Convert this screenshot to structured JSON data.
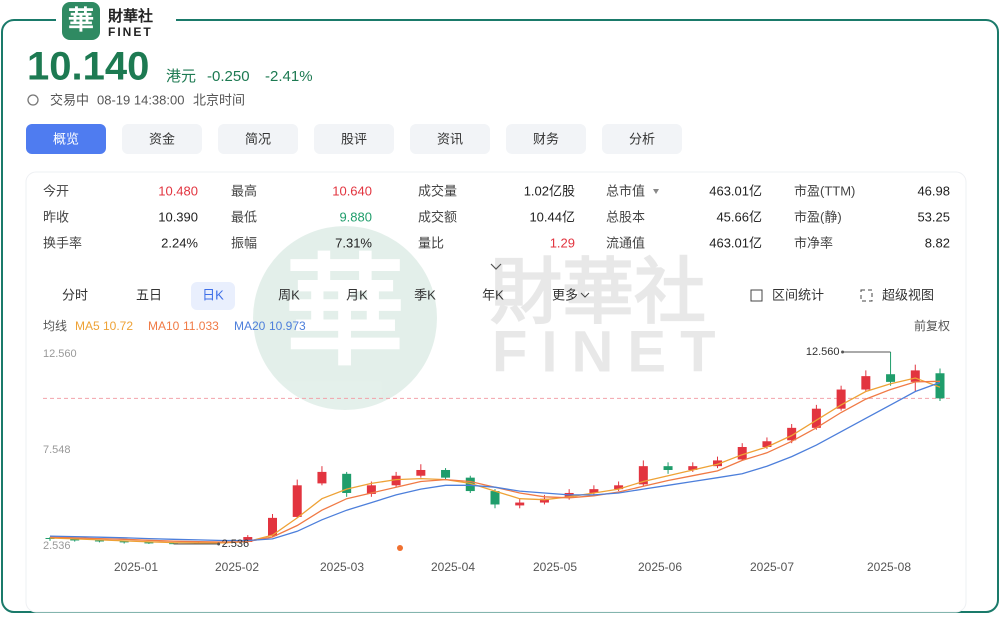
{
  "logo": {
    "glyph": "華",
    "name": "財華社",
    "latin": "FINET"
  },
  "quote": {
    "price": "10.140",
    "currency": "港元",
    "change": "-0.250",
    "change_pct": "-2.41%",
    "status": "交易中",
    "time": "08-19 14:38:00",
    "timezone": "北京时间"
  },
  "tabs": [
    {
      "label": "概览",
      "active": true
    },
    {
      "label": "资金"
    },
    {
      "label": "简况"
    },
    {
      "label": "股评"
    },
    {
      "label": "资讯"
    },
    {
      "label": "财务"
    },
    {
      "label": "分析"
    }
  ],
  "stats": [
    [
      {
        "label": "今开",
        "value": "10.480",
        "tone": "up"
      },
      {
        "label": "最高",
        "value": "10.640",
        "tone": "up"
      },
      {
        "label": "成交量",
        "value": "1.02亿股"
      },
      {
        "label": "总市值",
        "value": "463.01亿",
        "menu": true
      },
      {
        "label": "市盈(TTM)",
        "value": "46.98"
      }
    ],
    [
      {
        "label": "昨收",
        "value": "10.390"
      },
      {
        "label": "最低",
        "value": "9.880",
        "tone": "down"
      },
      {
        "label": "成交额",
        "value": "10.44亿"
      },
      {
        "label": "总股本",
        "value": "45.66亿"
      },
      {
        "label": "市盈(静)",
        "value": "53.25"
      }
    ],
    [
      {
        "label": "换手率",
        "value": "2.24%"
      },
      {
        "label": "振幅",
        "value": "7.31%"
      },
      {
        "label": "量比",
        "value": "1.29",
        "tone": "up"
      },
      {
        "label": "流通值",
        "value": "463.01亿"
      },
      {
        "label": "市净率",
        "value": "8.82"
      }
    ]
  ],
  "chart_tabs": [
    {
      "label": "分时"
    },
    {
      "label": "五日"
    },
    {
      "label": "日K",
      "active": true
    },
    {
      "label": "周K"
    },
    {
      "label": "月K"
    },
    {
      "label": "季K"
    },
    {
      "label": "年K"
    },
    {
      "label": "更多",
      "menu": true
    }
  ],
  "chart_tools": [
    "区间统计",
    "超级视图"
  ],
  "chart_data": {
    "type": "candlestick",
    "ma_title": "均线",
    "adjust": "前复权",
    "up_color": "#e2343f",
    "down_color": "#1f9d6b",
    "open": [
      2.85,
      2.8,
      2.72,
      2.68,
      2.62,
      2.58,
      2.56,
      2.6,
      2.64,
      2.95,
      3.95,
      5.7,
      6.2,
      5.15,
      5.6,
      6.1,
      6.4,
      6.0,
      5.3,
      4.55,
      4.7,
      4.95,
      5.2,
      5.4,
      5.65,
      6.6,
      6.4,
      6.6,
      6.95,
      7.6,
      7.95,
      8.6,
      9.6,
      10.6,
      11.4,
      11.0,
      11.45
    ],
    "high": [
      2.9,
      2.84,
      2.76,
      2.7,
      2.66,
      2.62,
      2.64,
      2.66,
      3.0,
      4.1,
      5.9,
      6.6,
      6.3,
      5.8,
      6.3,
      6.7,
      6.5,
      6.1,
      5.4,
      4.9,
      5.1,
      5.4,
      5.6,
      5.8,
      6.9,
      6.8,
      6.8,
      7.1,
      7.8,
      8.1,
      8.8,
      9.8,
      10.8,
      11.6,
      12.56,
      11.9,
      11.7
    ],
    "low": [
      2.7,
      2.66,
      2.62,
      2.56,
      2.54,
      2.536,
      2.55,
      2.58,
      2.62,
      2.9,
      3.9,
      5.6,
      5.0,
      5.0,
      5.5,
      6.0,
      5.9,
      5.2,
      4.4,
      4.4,
      4.6,
      4.85,
      5.1,
      5.3,
      5.55,
      6.2,
      6.3,
      6.5,
      6.9,
      7.5,
      7.8,
      8.5,
      9.5,
      10.5,
      10.8,
      10.5,
      10.0
    ],
    "close": [
      2.8,
      2.72,
      2.68,
      2.62,
      2.58,
      2.56,
      2.6,
      2.62,
      2.9,
      3.9,
      5.6,
      6.3,
      5.2,
      5.6,
      6.1,
      6.4,
      6.0,
      5.3,
      4.6,
      4.7,
      4.9,
      5.2,
      5.4,
      5.6,
      6.6,
      6.4,
      6.6,
      6.9,
      7.6,
      7.9,
      8.6,
      9.6,
      10.6,
      11.3,
      11.0,
      11.6,
      10.14
    ],
    "series": [
      {
        "name": "MA5",
        "current": "10.72",
        "color": "#eea236",
        "values": [
          2.85,
          2.8,
          2.75,
          2.7,
          2.65,
          2.61,
          2.6,
          2.6,
          2.66,
          3.0,
          3.9,
          4.9,
          5.4,
          5.7,
          5.9,
          5.95,
          5.9,
          5.7,
          5.3,
          4.9,
          4.85,
          5.0,
          5.2,
          5.4,
          5.8,
          6.1,
          6.4,
          6.7,
          7.2,
          7.6,
          8.2,
          9.0,
          9.8,
          10.5,
          10.9,
          11.2,
          10.72
        ]
      },
      {
        "name": "MA10",
        "current": "11.033",
        "color": "#f07a45",
        "values": [
          2.9,
          2.86,
          2.82,
          2.78,
          2.73,
          2.68,
          2.66,
          2.64,
          2.66,
          2.9,
          3.5,
          4.3,
          4.9,
          5.2,
          5.5,
          5.8,
          5.9,
          5.8,
          5.5,
          5.2,
          5.0,
          4.95,
          5.05,
          5.25,
          5.55,
          5.85,
          6.1,
          6.35,
          6.9,
          7.3,
          7.9,
          8.6,
          9.4,
          10.1,
          10.6,
          11.0,
          11.03
        ]
      },
      {
        "name": "MA20",
        "current": "10.973",
        "color": "#4d7fdb",
        "values": [
          2.95,
          2.92,
          2.89,
          2.86,
          2.82,
          2.78,
          2.75,
          2.72,
          2.72,
          2.8,
          3.2,
          3.8,
          4.3,
          4.7,
          5.1,
          5.4,
          5.6,
          5.6,
          5.5,
          5.3,
          5.2,
          5.1,
          5.1,
          5.2,
          5.4,
          5.6,
          5.8,
          6.0,
          6.2,
          6.6,
          7.1,
          7.7,
          8.4,
          9.1,
          9.8,
          10.5,
          10.97
        ]
      }
    ],
    "ylim": [
      2.536,
      12.56
    ],
    "yticks": [
      2.536,
      7.548,
      {
        "value": 12.56,
        "label": "12.560"
      }
    ],
    "x_labels": [
      "2025-01",
      "2025-02",
      "2025-03",
      "2025-04",
      "2025-05",
      "2025-06",
      "2025-07",
      "2025-08"
    ],
    "annotations": [
      {
        "value": 12.56,
        "label": "12.560"
      },
      {
        "value": 2.536,
        "label": "2.536"
      }
    ],
    "current_price": 10.14
  }
}
